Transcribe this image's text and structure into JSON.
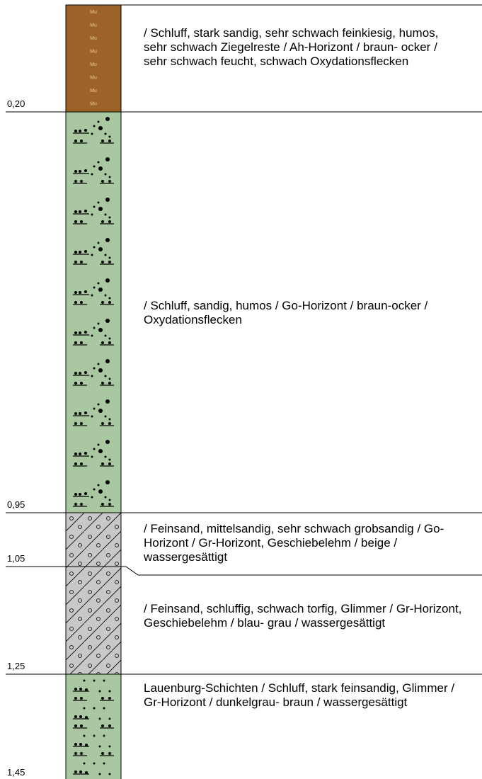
{
  "pattern_label": "Mu",
  "layers": [
    {
      "depth": "0,20",
      "description": "/ Schluff, stark sandig, sehr schwach feinkiesig, humos, sehr schwach Ziegelreste / Ah-Horizont / braun- ocker / sehr schwach feucht, schwach Oxydationsflecken"
    },
    {
      "depth": "0,95",
      "description": "/ Schluff, sandig, humos / Go-Horizont / braun-ocker / Oxydationsflecken"
    },
    {
      "depth": "1,05",
      "description": "/ Feinsand, mittelsandig, sehr schwach grobsandig / Go-Horizont / Gr-Horizont, Geschiebelehm / beige / wassergesättigt"
    },
    {
      "depth": "1,25",
      "description": "/ Feinsand, schluffig, schwach torfig, Glimmer / Gr-Horizont, Geschiebelehm / blau- grau / wassergesättigt"
    },
    {
      "depth": "1,45",
      "description": "Lauenburg-Schichten / Schluff, stark feinsandig, Glimmer / Gr-Horizont / dunkelgrau- braun / wassergesättigt"
    }
  ]
}
